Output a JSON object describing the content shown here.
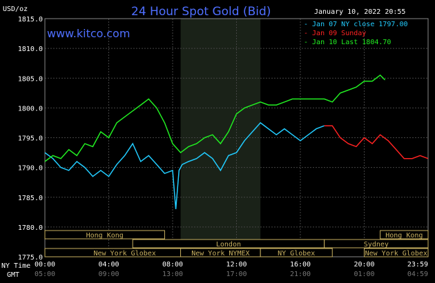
{
  "header": {
    "title": "24 Hour Spot Gold (Bid)",
    "site": "www.kitco.com",
    "timestamp": "January 10, 2022 20:55",
    "unit_label": "USD/oz"
  },
  "legend": [
    {
      "marker": "-",
      "text": "Jan 07 NY close 1797.00",
      "color": "#22ccff"
    },
    {
      "marker": "-",
      "text": "Jan 09 Sunday",
      "color": "#ff2222"
    },
    {
      "marker": "-",
      "text": "Jan 10 Last 1804.70",
      "color": "#22ee22"
    }
  ],
  "axis_labels": {
    "ny_time": "NY Time",
    "gmt": "GMT"
  },
  "markets": [
    {
      "name": "Hong Kong",
      "start": 0,
      "end": 7.5
    },
    {
      "name": "London",
      "start": 5.5,
      "end": 17.5
    },
    {
      "name": "New York Globex",
      "start": 0,
      "end": 10
    },
    {
      "name": "New York NYMEX",
      "start": 8.5,
      "end": 13.5
    },
    {
      "name": "NY Globex",
      "start": 13.5,
      "end": 18
    },
    {
      "name": "Hong Kong",
      "start": 21,
      "end": 24
    },
    {
      "name": "Sydney",
      "start": 17.5,
      "end": 24
    },
    {
      "name": "New York Globex",
      "start": 20,
      "end": 24
    }
  ],
  "chart_data": {
    "type": "line",
    "title": "24 Hour Spot Gold (Bid)",
    "ylabel": "USD/oz",
    "ylim": [
      1775,
      1815
    ],
    "xlim": [
      0,
      24
    ],
    "yticks": [
      "1775.0",
      "1780.0",
      "1785.0",
      "1790.0",
      "1795.0",
      "1800.0",
      "1805.0",
      "1810.0",
      "1815.0"
    ],
    "xticks_ny": [
      "00:00",
      "04:00",
      "08:00",
      "12:00",
      "16:00",
      "20:00",
      "23:59"
    ],
    "xticks_gmt": [
      "05:00",
      "09:00",
      "13:00",
      "17:00",
      "21:00",
      "01:00",
      "04:59"
    ],
    "shaded_region": [
      8.5,
      13.5
    ],
    "grid": true,
    "series": [
      {
        "name": "Jan 07 NY close 1797.00",
        "color": "#22ccff",
        "x": [
          0,
          0.5,
          1,
          1.5,
          2,
          2.5,
          3,
          3.5,
          4,
          4.5,
          5,
          5.5,
          6,
          6.5,
          7,
          7.5,
          8,
          8.2,
          8.4,
          8.6,
          9,
          9.5,
          10,
          10.5,
          11,
          11.5,
          12,
          12.5,
          13,
          13.5,
          14,
          14.5,
          15,
          15.5,
          16,
          16.5,
          17,
          17.5
        ],
        "values": [
          1792.5,
          1791.5,
          1790.0,
          1789.5,
          1791.0,
          1790.0,
          1788.5,
          1789.5,
          1788.5,
          1790.5,
          1792.0,
          1794.0,
          1791.0,
          1792.0,
          1790.5,
          1789.0,
          1789.5,
          1783.0,
          1789.5,
          1790.5,
          1791.0,
          1791.5,
          1792.5,
          1791.5,
          1789.5,
          1792.0,
          1792.5,
          1794.5,
          1796.0,
          1797.5,
          1796.5,
          1795.5,
          1796.5,
          1795.5,
          1794.5,
          1795.5,
          1796.5,
          1797.0
        ]
      },
      {
        "name": "Jan 09 Sunday",
        "color": "#ff2222",
        "x": [
          17.5,
          18,
          18.5,
          19,
          19.5,
          20,
          20.5,
          21,
          21.5,
          22,
          22.5,
          23,
          23.5,
          23.99
        ],
        "values": [
          1797.0,
          1797.0,
          1795.0,
          1794.0,
          1793.5,
          1795.0,
          1794.0,
          1795.5,
          1794.5,
          1793.0,
          1791.5,
          1791.5,
          1792.0,
          1791.5
        ]
      },
      {
        "name": "Jan 10 Last 1804.70",
        "color": "#22ee22",
        "x": [
          0,
          0.5,
          1,
          1.5,
          2,
          2.5,
          3,
          3.5,
          4,
          4.5,
          5,
          5.5,
          6,
          6.5,
          7,
          7.5,
          8,
          8.5,
          9,
          9.5,
          10,
          10.5,
          11,
          11.5,
          12,
          12.5,
          13,
          13.5,
          14,
          14.5,
          15,
          15.5,
          16,
          16.5,
          17,
          17.5,
          18,
          18.5,
          19,
          19.5,
          20,
          20.5,
          21,
          21.3
        ],
        "values": [
          1791.0,
          1792.0,
          1791.5,
          1793.0,
          1792.0,
          1794.0,
          1793.5,
          1796.0,
          1795.0,
          1797.5,
          1798.5,
          1799.5,
          1800.5,
          1801.5,
          1800.0,
          1797.5,
          1794.0,
          1792.5,
          1793.5,
          1794.0,
          1795.0,
          1795.5,
          1794.0,
          1796.0,
          1799.0,
          1800.0,
          1800.5,
          1801.0,
          1800.5,
          1800.5,
          1801.0,
          1801.5,
          1801.5,
          1801.5,
          1801.5,
          1801.5,
          1801.0,
          1802.5,
          1803.0,
          1803.5,
          1804.5,
          1804.5,
          1805.5,
          1804.7
        ]
      }
    ]
  }
}
